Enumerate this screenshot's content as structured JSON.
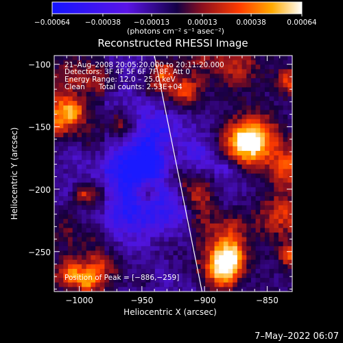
{
  "chart_data": {
    "type": "heatmap",
    "title": "Reconstructed RHESSI Image",
    "xlabel": "Heliocentric X (arcsec)",
    "ylabel": "Heliocentric Y (arcsec)",
    "xlim": [
      -1020,
      -830
    ],
    "ylim": [
      -282,
      -93
    ],
    "xticks": [
      -1000,
      -950,
      -900,
      -850
    ],
    "yticks": [
      -250,
      -200,
      -150,
      -100
    ],
    "xtick_labels": [
      "−1000",
      "−950",
      "−900",
      "−850"
    ],
    "ytick_labels": [
      "−250",
      "−200",
      "−150",
      "−100"
    ],
    "colorbar": {
      "range": [
        -0.00064,
        0.00064
      ],
      "ticks": [
        -0.00064,
        -0.00038,
        -0.00013,
        0.00013,
        0.00038,
        0.00064
      ],
      "tick_labels": [
        "−0.00064",
        "−0.00038",
        "−0.00013",
        "0.00013",
        "0.00038",
        "0.00064"
      ],
      "unit_label": "(photons cm⁻² s⁻¹ asec⁻²)"
    },
    "annotations": [
      "21–Aug–2008 20:05:20.000 to 20:11:20.000",
      "Detectors: 3F 4F 5F 6F 7F 8F, Att 0",
      "Energy Range: 12.0 – 25.0 keV",
      "Clean      Total counts: 2.53E+04"
    ],
    "peak_label": "Position of Peak = [−886,−259]",
    "limb_line": {
      "x": [
        -940,
        -902
      ],
      "y": [
        -93,
        -282
      ]
    },
    "grid": false
  },
  "footer": {
    "timestamp": "7–May–2022 06:07"
  },
  "colors": {
    "background": "#000000",
    "text": "#ffffff",
    "limb": "#ffffff"
  }
}
